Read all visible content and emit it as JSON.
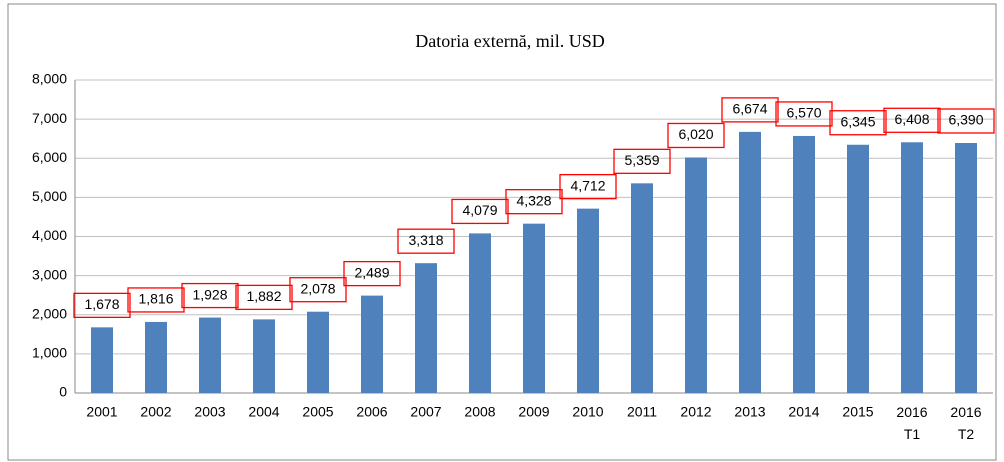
{
  "chart_data": {
    "type": "bar",
    "title": "Datoria externă, mil. USD",
    "categories": [
      "2001",
      "2002",
      "2003",
      "2004",
      "2005",
      "2006",
      "2007",
      "2008",
      "2009",
      "2010",
      "2011",
      "2012",
      "2013",
      "2014",
      "2015",
      "2016 T1",
      "2016 T2"
    ],
    "values": [
      1678,
      1816,
      1928,
      1882,
      2078,
      2489,
      3318,
      4079,
      4328,
      4712,
      5359,
      6020,
      6674,
      6570,
      6345,
      6408,
      6390
    ],
    "value_labels": [
      "1,678",
      "1,816",
      "1,928",
      "1,882",
      "2,078",
      "2,489",
      "3,318",
      "4,079",
      "4,328",
      "4,712",
      "5,359",
      "6,020",
      "6,674",
      "6,570",
      "6,345",
      "6,408",
      "6,390"
    ],
    "color": "#4f81bd",
    "label_box_color": "#ff0000",
    "ylim": [
      0,
      8000
    ],
    "yticks": [
      0,
      {
        "value": 1000,
        "label": "1,000"
      },
      {
        "value": 2000,
        "label": "2,000"
      },
      {
        "value": 3000,
        "label": "3,000"
      },
      {
        "value": 4000,
        "label": "4,000"
      },
      {
        "value": 5000,
        "label": "5,000"
      },
      {
        "value": 6000,
        "label": "6,000"
      },
      {
        "value": 7000,
        "label": "7,000"
      },
      {
        "value": 8000,
        "label": "8,000"
      }
    ],
    "grid": true
  }
}
